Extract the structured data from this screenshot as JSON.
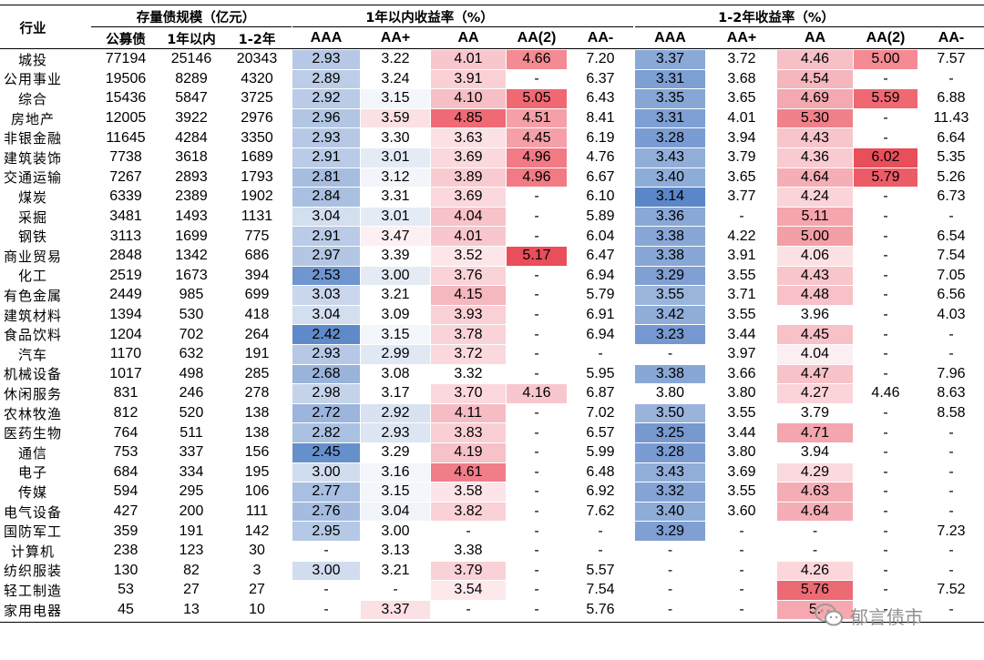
{
  "header": {
    "industry": "行业",
    "scale_group": "存量债规模（亿元）",
    "scale_cols": [
      "公募债",
      "1年以内",
      "1-2年"
    ],
    "y1_group": "1年以内收益率（%）",
    "y2_group": "1-2年收益率（%）",
    "rating_cols": [
      "AAA",
      "AA+",
      "AA",
      "AA(2)",
      "AA-"
    ]
  },
  "rows": [
    {
      "industry": "城投",
      "scale": [
        "77194",
        "25146",
        "20343"
      ],
      "y1": [
        "2.93",
        "3.22",
        "4.01",
        "4.66",
        "7.20"
      ],
      "y2": [
        "3.37",
        "3.72",
        "4.46",
        "5.00",
        "7.57"
      ]
    },
    {
      "industry": "公用事业",
      "scale": [
        "19506",
        "8289",
        "4320"
      ],
      "y1": [
        "2.89",
        "3.24",
        "3.91",
        "-",
        "6.37"
      ],
      "y2": [
        "3.31",
        "3.68",
        "4.54",
        "-",
        "-"
      ]
    },
    {
      "industry": "综合",
      "scale": [
        "15436",
        "5847",
        "3725"
      ],
      "y1": [
        "2.92",
        "3.15",
        "4.10",
        "5.05",
        "6.43"
      ],
      "y2": [
        "3.35",
        "3.65",
        "4.69",
        "5.59",
        "6.88"
      ]
    },
    {
      "industry": "房地产",
      "scale": [
        "12005",
        "3922",
        "2976"
      ],
      "y1": [
        "2.96",
        "3.59",
        "4.85",
        "4.51",
        "8.41"
      ],
      "y2": [
        "3.31",
        "4.01",
        "5.30",
        "-",
        "11.43"
      ]
    },
    {
      "industry": "非银金融",
      "scale": [
        "11645",
        "4284",
        "3350"
      ],
      "y1": [
        "2.93",
        "3.30",
        "3.63",
        "4.45",
        "6.19"
      ],
      "y2": [
        "3.28",
        "3.94",
        "4.43",
        "-",
        "6.64"
      ]
    },
    {
      "industry": "建筑装饰",
      "scale": [
        "7738",
        "3618",
        "1689"
      ],
      "y1": [
        "2.91",
        "3.01",
        "3.69",
        "4.96",
        "4.76"
      ],
      "y2": [
        "3.43",
        "3.79",
        "4.36",
        "6.02",
        "5.35"
      ]
    },
    {
      "industry": "交通运输",
      "scale": [
        "7267",
        "2893",
        "1793"
      ],
      "y1": [
        "2.81",
        "3.12",
        "3.89",
        "4.96",
        "6.67"
      ],
      "y2": [
        "3.40",
        "3.65",
        "4.64",
        "5.79",
        "5.26"
      ]
    },
    {
      "industry": "煤炭",
      "scale": [
        "6339",
        "2389",
        "1902"
      ],
      "y1": [
        "2.84",
        "3.31",
        "3.69",
        "-",
        "6.10"
      ],
      "y2": [
        "3.14",
        "3.77",
        "4.24",
        "-",
        "6.73"
      ]
    },
    {
      "industry": "采掘",
      "scale": [
        "3481",
        "1493",
        "1131"
      ],
      "y1": [
        "3.04",
        "3.01",
        "4.04",
        "-",
        "5.89"
      ],
      "y2": [
        "3.36",
        "-",
        "5.11",
        "-",
        "-"
      ]
    },
    {
      "industry": "钢铁",
      "scale": [
        "3113",
        "1699",
        "775"
      ],
      "y1": [
        "2.91",
        "3.47",
        "4.01",
        "-",
        "6.04"
      ],
      "y2": [
        "3.38",
        "4.22",
        "5.00",
        "-",
        "6.54"
      ]
    },
    {
      "industry": "商业贸易",
      "scale": [
        "2848",
        "1342",
        "686"
      ],
      "y1": [
        "2.97",
        "3.39",
        "3.52",
        "5.17",
        "6.47"
      ],
      "y2": [
        "3.38",
        "3.91",
        "4.06",
        "-",
        "7.54"
      ]
    },
    {
      "industry": "化工",
      "scale": [
        "2519",
        "1673",
        "394"
      ],
      "y1": [
        "2.53",
        "3.00",
        "3.76",
        "-",
        "6.94"
      ],
      "y2": [
        "3.29",
        "3.55",
        "4.43",
        "-",
        "7.05"
      ]
    },
    {
      "industry": "有色金属",
      "scale": [
        "2449",
        "985",
        "699"
      ],
      "y1": [
        "3.03",
        "3.21",
        "4.15",
        "-",
        "5.79"
      ],
      "y2": [
        "3.55",
        "3.71",
        "4.48",
        "-",
        "6.56"
      ]
    },
    {
      "industry": "建筑材料",
      "scale": [
        "1394",
        "530",
        "418"
      ],
      "y1": [
        "3.04",
        "3.09",
        "3.93",
        "-",
        "6.91"
      ],
      "y2": [
        "3.42",
        "3.55",
        "3.96",
        "-",
        "4.03"
      ]
    },
    {
      "industry": "食品饮料",
      "scale": [
        "1204",
        "702",
        "264"
      ],
      "y1": [
        "2.42",
        "3.15",
        "3.78",
        "-",
        "6.94"
      ],
      "y2": [
        "3.23",
        "3.44",
        "4.45",
        "-",
        "-"
      ]
    },
    {
      "industry": "汽车",
      "scale": [
        "1170",
        "632",
        "191"
      ],
      "y1": [
        "2.93",
        "2.99",
        "3.72",
        "-",
        "-"
      ],
      "y2": [
        "-",
        "3.97",
        "4.04",
        "-",
        "-"
      ]
    },
    {
      "industry": "机械设备",
      "scale": [
        "1017",
        "498",
        "285"
      ],
      "y1": [
        "2.68",
        "3.08",
        "3.32",
        "-",
        "5.95"
      ],
      "y2": [
        "3.38",
        "3.66",
        "4.47",
        "-",
        "7.96"
      ]
    },
    {
      "industry": "休闲服务",
      "scale": [
        "831",
        "246",
        "278"
      ],
      "y1": [
        "2.98",
        "3.17",
        "3.70",
        "4.16",
        "6.87"
      ],
      "y2": [
        "3.80",
        "3.80",
        "4.27",
        "4.46",
        "8.63"
      ]
    },
    {
      "industry": "农林牧渔",
      "scale": [
        "812",
        "520",
        "138"
      ],
      "y1": [
        "2.72",
        "2.92",
        "4.11",
        "-",
        "7.02"
      ],
      "y2": [
        "3.50",
        "3.55",
        "3.79",
        "-",
        "8.58"
      ]
    },
    {
      "industry": "医药生物",
      "scale": [
        "764",
        "511",
        "138"
      ],
      "y1": [
        "2.82",
        "2.93",
        "3.83",
        "-",
        "6.57"
      ],
      "y2": [
        "3.25",
        "3.44",
        "4.71",
        "-",
        "-"
      ]
    },
    {
      "industry": "通信",
      "scale": [
        "753",
        "337",
        "156"
      ],
      "y1": [
        "2.45",
        "3.29",
        "4.19",
        "-",
        "5.99"
      ],
      "y2": [
        "3.28",
        "3.80",
        "3.94",
        "-",
        "-"
      ]
    },
    {
      "industry": "电子",
      "scale": [
        "684",
        "334",
        "195"
      ],
      "y1": [
        "3.00",
        "3.16",
        "4.61",
        "-",
        "6.48"
      ],
      "y2": [
        "3.43",
        "3.69",
        "4.29",
        "-",
        "-"
      ]
    },
    {
      "industry": "传媒",
      "scale": [
        "594",
        "295",
        "106"
      ],
      "y1": [
        "2.77",
        "3.15",
        "3.58",
        "-",
        "6.92"
      ],
      "y2": [
        "3.32",
        "3.55",
        "4.63",
        "-",
        "-"
      ]
    },
    {
      "industry": "电气设备",
      "scale": [
        "427",
        "200",
        "111"
      ],
      "y1": [
        "2.76",
        "3.04",
        "3.82",
        "-",
        "7.62"
      ],
      "y2": [
        "3.40",
        "3.60",
        "4.64",
        "-",
        "-"
      ]
    },
    {
      "industry": "国防军工",
      "scale": [
        "359",
        "191",
        "142"
      ],
      "y1": [
        "2.95",
        "3.00",
        "-",
        "-",
        "-"
      ],
      "y2": [
        "3.29",
        "-",
        "-",
        "-",
        "7.23"
      ]
    },
    {
      "industry": "计算机",
      "scale": [
        "238",
        "123",
        "30"
      ],
      "y1": [
        "-",
        "3.13",
        "3.38",
        "-",
        "-"
      ],
      "y2": [
        "-",
        "-",
        "-",
        "-",
        "-"
      ]
    },
    {
      "industry": "纺织服装",
      "scale": [
        "130",
        "82",
        "3"
      ],
      "y1": [
        "3.00",
        "3.21",
        "3.79",
        "-",
        "5.57"
      ],
      "y2": [
        "-",
        "-",
        "4.26",
        "-",
        "-"
      ]
    },
    {
      "industry": "轻工制造",
      "scale": [
        "53",
        "27",
        "27"
      ],
      "y1": [
        "-",
        "-",
        "3.54",
        "-",
        "7.54"
      ],
      "y2": [
        "-",
        "-",
        "5.76",
        "-",
        "7.52"
      ]
    },
    {
      "industry": "家用电器",
      "scale": [
        "45",
        "13",
        "10"
      ],
      "y1": [
        "-",
        "3.37",
        "-",
        "-",
        "5.76"
      ],
      "y2": [
        "-",
        "-",
        "5.",
        "-",
        "-"
      ]
    }
  ],
  "heat_colors": {
    "y1": [
      [
        "#b6c8e5",
        "#ffffff",
        "#f8c7cd",
        "#f48a93",
        "#ffffff"
      ],
      [
        "#bccde7",
        "#ffffff",
        "#fad0d5",
        "#ffffff",
        "#ffffff"
      ],
      [
        "#b9cbe6",
        "#f3f6fb",
        "#f6bfc5",
        "#f06872",
        "#ffffff"
      ],
      [
        "#b2c6e4",
        "#fbe0e4",
        "#f06a75",
        "#f5a0a8",
        "#ffffff"
      ],
      [
        "#b6c8e5",
        "#ffffff",
        "#fbe0e4",
        "#f5a0a8",
        "#ffffff"
      ],
      [
        "#b9cbe6",
        "#e4ebf5",
        "#fad8dd",
        "#f27a84",
        "#ffffff"
      ],
      [
        "#a6bde0",
        "#f2f5fa",
        "#f8cbd1",
        "#f27a84",
        "#ffffff"
      ],
      [
        "#aac0e1",
        "#ffffff",
        "#fad8dd",
        "#ffffff",
        "#ffffff"
      ],
      [
        "#d3deef",
        "#e4ebf5",
        "#f7c2c8",
        "#ffffff",
        "#ffffff"
      ],
      [
        "#b9cbe6",
        "#fdf0f2",
        "#f8c7cd",
        "#ffffff",
        "#ffffff"
      ],
      [
        "#b3c7e4",
        "#ffffff",
        "#fce6e9",
        "#e94e5b",
        "#ffffff"
      ],
      [
        "#6f96cf",
        "#e4ebf5",
        "#f9d3d8",
        "#ffffff",
        "#ffffff"
      ],
      [
        "#cad6ec",
        "#ffffff",
        "#f6b8bf",
        "#ffffff",
        "#ffffff"
      ],
      [
        "#d3deef",
        "#ffffff",
        "#f9d0d5",
        "#ffffff",
        "#ffffff"
      ],
      [
        "#5f8ac9",
        "#f3f6fb",
        "#f9d3d8",
        "#ffffff",
        "#ffffff"
      ],
      [
        "#b6c8e5",
        "#e0e8f4",
        "#fad8dd",
        "#ffffff",
        "#ffffff"
      ],
      [
        "#99b3db",
        "#ffffff",
        "#ffffff",
        "#ffffff",
        "#ffffff"
      ],
      [
        "#c5d3ea",
        "#ffffff",
        "#fbd8dd",
        "#f8c7cd",
        "#ffffff"
      ],
      [
        "#9cb5dc",
        "#d8e2f1",
        "#f6bcc3",
        "#ffffff",
        "#ffffff"
      ],
      [
        "#abc1e2",
        "#dce5f2",
        "#f9cfd4",
        "#ffffff",
        "#ffffff"
      ],
      [
        "#6590cb",
        "#ffffff",
        "#f7c1c8",
        "#ffffff",
        "#ffffff"
      ],
      [
        "#d1dcee",
        "#f3f6fb",
        "#f07e89",
        "#ffffff",
        "#ffffff"
      ],
      [
        "#a8bfe1",
        "#f3f6fb",
        "#fde4e8",
        "#ffffff",
        "#ffffff"
      ],
      [
        "#a5bce0",
        "#f0f4f9",
        "#f9d1d6",
        "#ffffff",
        "#ffffff"
      ],
      [
        "#b5c8e5",
        "#ffffff",
        "#ffffff",
        "#ffffff",
        "#ffffff"
      ],
      [
        "#ffffff",
        "#ffffff",
        "#ffffff",
        "#ffffff",
        "#ffffff"
      ],
      [
        "#d1dcee",
        "#ffffff",
        "#f9d2d7",
        "#ffffff",
        "#ffffff"
      ],
      [
        "#ffffff",
        "#ffffff",
        "#fde9ec",
        "#ffffff",
        "#ffffff"
      ],
      [
        "#ffffff",
        "#fbe0e4",
        "#ffffff",
        "#ffffff",
        "#ffffff"
      ]
    ],
    "y2": [
      [
        "#8aa9d6",
        "#ffffff",
        "#f7bfc6",
        "#f48a93",
        "#ffffff"
      ],
      [
        "#7e9fd3",
        "#ffffff",
        "#f6b6bd",
        "#ffffff",
        "#ffffff"
      ],
      [
        "#86a6d5",
        "#ffffff",
        "#f4a8b0",
        "#f06872",
        "#ffffff"
      ],
      [
        "#7e9fd3",
        "#ffffff",
        "#f0808a",
        "#ffffff",
        "#ffffff"
      ],
      [
        "#7a9cd2",
        "#ffffff",
        "#f8c5cb",
        "#ffffff",
        "#ffffff"
      ],
      [
        "#91aed9",
        "#ffffff",
        "#f8cbd1",
        "#e94e5b",
        "#ffffff"
      ],
      [
        "#8eacd8",
        "#ffffff",
        "#f5aeb6",
        "#ec5c68",
        "#ffffff"
      ],
      [
        "#5b87c8",
        "#ffffff",
        "#fad4d9",
        "#ffffff",
        "#ffffff"
      ],
      [
        "#89a8d6",
        "#ffffff",
        "#f4a5ad",
        "#ffffff",
        "#ffffff"
      ],
      [
        "#88a7d6",
        "#ffffff",
        "#f49ea6",
        "#ffffff",
        "#ffffff"
      ],
      [
        "#88a7d6",
        "#ffffff",
        "#fde0e4",
        "#ffffff",
        "#ffffff"
      ],
      [
        "#809fd3",
        "#ffffff",
        "#f8c5cb",
        "#ffffff",
        "#ffffff"
      ],
      [
        "#9bb4db",
        "#ffffff",
        "#f8c1c8",
        "#ffffff",
        "#ffffff"
      ],
      [
        "#8fadd8",
        "#ffffff",
        "#ffffff",
        "#ffffff",
        "#ffffff"
      ],
      [
        "#7698d0",
        "#ffffff",
        "#f7c1c7",
        "#ffffff",
        "#ffffff"
      ],
      [
        "#ffffff",
        "#ffffff",
        "#fdeef1",
        "#ffffff",
        "#ffffff"
      ],
      [
        "#88a7d6",
        "#ffffff",
        "#f7c2c8",
        "#ffffff",
        "#ffffff"
      ],
      [
        "#ffffff",
        "#ffffff",
        "#fbd3d8",
        "#ffffff",
        "#ffffff"
      ],
      [
        "#9ab3db",
        "#ffffff",
        "#ffffff",
        "#ffffff",
        "#ffffff"
      ],
      [
        "#7799d0",
        "#ffffff",
        "#f4a5ad",
        "#ffffff",
        "#ffffff"
      ],
      [
        "#7a9cd2",
        "#ffffff",
        "#ffffff",
        "#ffffff",
        "#ffffff"
      ],
      [
        "#91aed9",
        "#ffffff",
        "#fadadf",
        "#ffffff",
        "#ffffff"
      ],
      [
        "#84a4d5",
        "#ffffff",
        "#f5adb5",
        "#ffffff",
        "#ffffff"
      ],
      [
        "#8eacd8",
        "#ffffff",
        "#f5aeb6",
        "#ffffff",
        "#ffffff"
      ],
      [
        "#809fd3",
        "#ffffff",
        "#ffffff",
        "#ffffff",
        "#ffffff"
      ],
      [
        "#ffffff",
        "#ffffff",
        "#ffffff",
        "#ffffff",
        "#ffffff"
      ],
      [
        "#ffffff",
        "#ffffff",
        "#fbd6db",
        "#ffffff",
        "#ffffff"
      ],
      [
        "#ffffff",
        "#ffffff",
        "#ec6a74",
        "#ffffff",
        "#ffffff"
      ],
      [
        "#ffffff",
        "#ffffff",
        "#f6a8b0",
        "#ffffff",
        "#ffffff"
      ]
    ]
  },
  "watermark": {
    "text": "郁言债市",
    "icon": "wechat-icon"
  }
}
